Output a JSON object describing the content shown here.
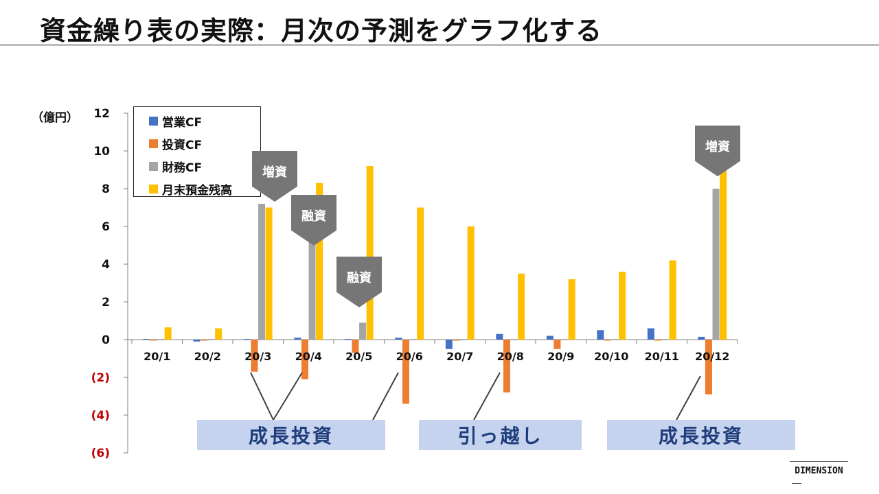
{
  "page": {
    "title": "資金繰り表の実際：月次の予測をグラフ化する",
    "logo": "DIMENSION"
  },
  "colors": {
    "eigyo": "#4472c4",
    "toshi": "#ed7d31",
    "zaimu": "#a5a5a5",
    "zandaka": "#ffc000",
    "negative_tick": "#c00000",
    "callout": "#767676",
    "band_bg": "#c5d3ef",
    "band_text": "#1f3d7a"
  },
  "callouts": {
    "mar": "増資",
    "apr": "融資",
    "may": "融資",
    "dec": "増資"
  },
  "bands": {
    "first": "成長投資",
    "second": "引っ越し",
    "third": "成長投資"
  },
  "chart_data": {
    "type": "bar",
    "unit_label": "（億円）",
    "categories": [
      "20/1",
      "20/2",
      "20/3",
      "20/4",
      "20/5",
      "20/6",
      "20/7",
      "20/8",
      "20/9",
      "20/10",
      "20/11",
      "20/12"
    ],
    "ylim": [
      -6,
      12
    ],
    "yticks": [
      {
        "value": 12,
        "label": "12"
      },
      {
        "value": 10,
        "label": "10"
      },
      {
        "value": 8,
        "label": "8"
      },
      {
        "value": 6,
        "label": "6"
      },
      {
        "value": 4,
        "label": "4"
      },
      {
        "value": 2,
        "label": "2"
      },
      {
        "value": 0,
        "label": "0"
      },
      {
        "value": -2,
        "label": "(2)"
      },
      {
        "value": -4,
        "label": "(4)"
      },
      {
        "value": -6,
        "label": "(6)"
      }
    ],
    "legend_position": "top-left",
    "grid": false,
    "series": [
      {
        "name": "営業CF",
        "color": "#4472c4",
        "values": [
          0,
          -0.1,
          0,
          0.1,
          0,
          0.1,
          -0.5,
          0.3,
          0.2,
          0.5,
          0.6,
          0.15
        ]
      },
      {
        "name": "投資CF",
        "color": "#ed7d31",
        "values": [
          -0.05,
          -0.05,
          -1.7,
          -2.1,
          -0.7,
          -3.4,
          -0.05,
          -2.8,
          -0.5,
          -0.05,
          -0.05,
          -2.9
        ]
      },
      {
        "name": "財務CF",
        "color": "#a5a5a5",
        "values": [
          0,
          0,
          7.2,
          6.0,
          0.9,
          0,
          0,
          0,
          0,
          0,
          0,
          8.0
        ]
      },
      {
        "name": "月末預金残高",
        "color": "#ffc000",
        "values": [
          0.65,
          0.6,
          7.0,
          8.3,
          9.2,
          7.0,
          6.0,
          3.5,
          3.2,
          3.6,
          4.2,
          9.3
        ]
      }
    ]
  }
}
